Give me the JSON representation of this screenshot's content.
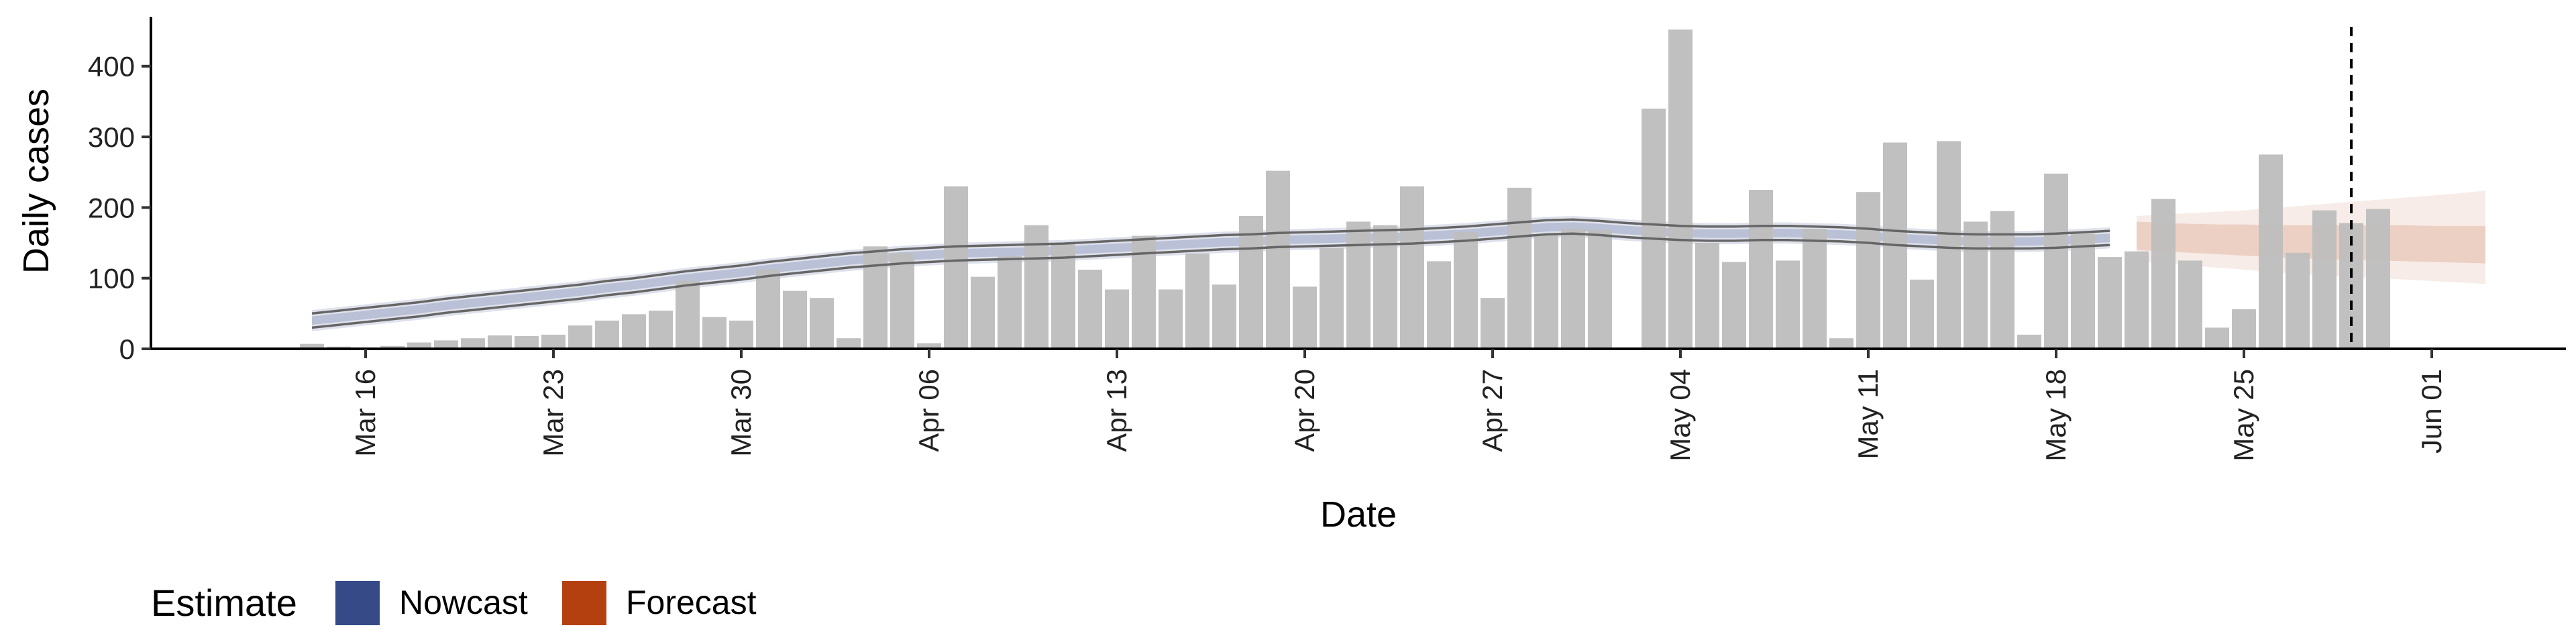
{
  "chart_data": {
    "type": "bar",
    "title": "",
    "xlabel": "Date",
    "ylabel": "Daily cases",
    "ylim": [
      0,
      470
    ],
    "xlim": [
      "2020-03-08",
      "2020-06-06"
    ],
    "y_ticks": [
      0,
      100,
      200,
      300,
      400
    ],
    "x_ticks": [
      {
        "date": "2020-03-16",
        "label": "Mar 16"
      },
      {
        "date": "2020-03-23",
        "label": "Mar 23"
      },
      {
        "date": "2020-03-30",
        "label": "Mar 30"
      },
      {
        "date": "2020-04-06",
        "label": "Apr 06"
      },
      {
        "date": "2020-04-13",
        "label": "Apr 13"
      },
      {
        "date": "2020-04-20",
        "label": "Apr 20"
      },
      {
        "date": "2020-04-27",
        "label": "Apr 27"
      },
      {
        "date": "2020-05-04",
        "label": "May 04"
      },
      {
        "date": "2020-05-11",
        "label": "May 11"
      },
      {
        "date": "2020-05-18",
        "label": "May 18"
      },
      {
        "date": "2020-05-25",
        "label": "May 25"
      },
      {
        "date": "2020-06-01",
        "label": "Jun 01"
      }
    ],
    "vline_date": "2020-05-29",
    "grid": false,
    "legend": {
      "title": "Estimate",
      "position": "bottom-left",
      "items": [
        {
          "label": "Nowcast",
          "color": "#354a86"
        },
        {
          "label": "Forecast",
          "color": "#b5400f"
        }
      ]
    },
    "colors": {
      "bars": "#bebebe",
      "nowcast": "#354a86",
      "forecast": "#b5400f",
      "bound_line": "#666666",
      "axis": "#000000"
    },
    "daily_cases": {
      "start_date": "2020-03-14",
      "values": [
        7,
        3,
        2,
        4,
        9,
        12,
        15,
        19,
        18,
        20,
        33,
        40,
        49,
        54,
        96,
        45,
        40,
        112,
        82,
        72,
        15,
        145,
        135,
        8,
        230,
        102,
        131,
        175,
        148,
        112,
        84,
        160,
        84,
        135,
        91,
        188,
        252,
        88,
        143,
        180,
        175,
        230,
        124,
        165,
        72,
        228,
        162,
        170,
        168,
        2,
        340,
        452,
        150,
        123,
        225,
        125,
        170,
        15,
        222,
        292,
        98,
        294,
        180,
        195,
        20,
        248,
        163,
        130,
        138,
        212,
        125,
        30,
        56,
        275,
        136,
        196,
        178,
        198
      ]
    },
    "series": [
      {
        "name": "Nowcast",
        "type": "ribbon",
        "start_date": "2020-03-14",
        "median": [
          40,
          44,
          48,
          52,
          56,
          61,
          65,
          69,
          73,
          77,
          81,
          86,
          90,
          95,
          100,
          104,
          108,
          113,
          117,
          121,
          125,
          128,
          131,
          133,
          135,
          136,
          137,
          138,
          139,
          141,
          143,
          145,
          147,
          149,
          151,
          152,
          154,
          155,
          156,
          157,
          158,
          159,
          161,
          163,
          166,
          169,
          172,
          173,
          171,
          168,
          166,
          164,
          163,
          163,
          164,
          164,
          163,
          162,
          160,
          157,
          155,
          153,
          152,
          152,
          152,
          153,
          155,
          157
        ],
        "inner_lower": [
          34,
          38,
          42,
          46,
          50,
          55,
          59,
          63,
          67,
          71,
          75,
          80,
          84,
          89,
          94,
          98,
          102,
          107,
          111,
          115,
          119,
          122,
          125,
          127,
          129,
          130,
          131,
          132,
          133,
          135,
          137,
          139,
          141,
          143,
          145,
          146,
          148,
          149,
          150,
          151,
          152,
          153,
          155,
          157,
          160,
          163,
          166,
          167,
          165,
          162,
          160,
          158,
          157,
          157,
          158,
          158,
          157,
          156,
          154,
          151,
          149,
          147,
          146,
          146,
          146,
          147,
          149,
          151
        ],
        "inner_upper": [
          46,
          50,
          54,
          58,
          62,
          67,
          71,
          75,
          79,
          83,
          87,
          92,
          96,
          101,
          106,
          110,
          114,
          119,
          123,
          127,
          131,
          134,
          137,
          139,
          141,
          142,
          143,
          144,
          145,
          147,
          149,
          151,
          153,
          155,
          157,
          158,
          160,
          161,
          162,
          163,
          164,
          165,
          167,
          169,
          172,
          175,
          178,
          179,
          177,
          174,
          172,
          170,
          169,
          169,
          170,
          170,
          169,
          168,
          166,
          163,
          161,
          159,
          158,
          158,
          158,
          159,
          161,
          163
        ],
        "lower_90": [
          25,
          29,
          33,
          37,
          41,
          46,
          50,
          54,
          58,
          62,
          66,
          71,
          75,
          80,
          85,
          89,
          93,
          98,
          102,
          106,
          110,
          113,
          116,
          118,
          120,
          121,
          122,
          123,
          124,
          126,
          128,
          130,
          132,
          134,
          136,
          137,
          139,
          140,
          141,
          142,
          143,
          144,
          146,
          148,
          151,
          154,
          157,
          158,
          156,
          153,
          151,
          149,
          148,
          148,
          149,
          149,
          148,
          147,
          145,
          142,
          140,
          138,
          137,
          137,
          137,
          138,
          140,
          142
        ],
        "upper_90": [
          55,
          59,
          63,
          67,
          71,
          76,
          80,
          84,
          88,
          92,
          96,
          101,
          105,
          110,
          115,
          119,
          123,
          128,
          132,
          136,
          140,
          143,
          146,
          148,
          150,
          151,
          152,
          153,
          154,
          156,
          158,
          160,
          162,
          164,
          166,
          167,
          169,
          170,
          171,
          172,
          173,
          174,
          176,
          178,
          181,
          184,
          187,
          188,
          186,
          183,
          181,
          179,
          178,
          178,
          179,
          179,
          178,
          177,
          175,
          172,
          170,
          168,
          167,
          167,
          167,
          168,
          170,
          172
        ],
        "lower_bound_line": [
          30,
          34,
          38,
          42,
          46,
          51,
          55,
          59,
          63,
          67,
          71,
          76,
          80,
          85,
          90,
          94,
          98,
          103,
          107,
          111,
          115,
          118,
          121,
          123,
          125,
          126,
          127,
          128,
          129,
          131,
          133,
          135,
          137,
          139,
          141,
          142,
          144,
          145,
          146,
          147,
          148,
          149,
          151,
          153,
          156,
          159,
          162,
          163,
          161,
          158,
          156,
          154,
          153,
          153,
          154,
          154,
          153,
          152,
          150,
          147,
          145,
          143,
          142,
          142,
          142,
          143,
          145,
          147
        ],
        "upper_bound_line": [
          50,
          54,
          58,
          62,
          66,
          71,
          75,
          79,
          83,
          87,
          91,
          96,
          100,
          105,
          110,
          114,
          118,
          123,
          127,
          131,
          135,
          138,
          141,
          143,
          145,
          146,
          147,
          148,
          149,
          151,
          153,
          155,
          157,
          159,
          161,
          162,
          164,
          165,
          166,
          167,
          168,
          169,
          171,
          173,
          176,
          179,
          182,
          183,
          181,
          178,
          176,
          174,
          173,
          173,
          174,
          174,
          173,
          172,
          170,
          167,
          165,
          163,
          162,
          162,
          162,
          163,
          165,
          167
        ]
      },
      {
        "name": "Forecast",
        "type": "ribbon",
        "start_date": "2020-05-21",
        "median": [
          160,
          158,
          156,
          155,
          154,
          153,
          152,
          152,
          151,
          151,
          150,
          150,
          150,
          149
        ],
        "inner_lower": [
          140,
          138,
          136,
          134,
          132,
          130,
          128,
          127,
          126,
          125,
          124,
          123,
          122,
          121
        ],
        "inner_upper": [
          180,
          178,
          177,
          176,
          176,
          175,
          175,
          175,
          175,
          175,
          175,
          174,
          174,
          174
        ],
        "lower_90": [
          124,
          121,
          118,
          115,
          112,
          109,
          106,
          104,
          102,
          100,
          98,
          96,
          94,
          92
        ],
        "upper_90": [
          188,
          190,
          192,
          194,
          196,
          199,
          202,
          205,
          208,
          211,
          214,
          217,
          220,
          224
        ]
      }
    ]
  }
}
